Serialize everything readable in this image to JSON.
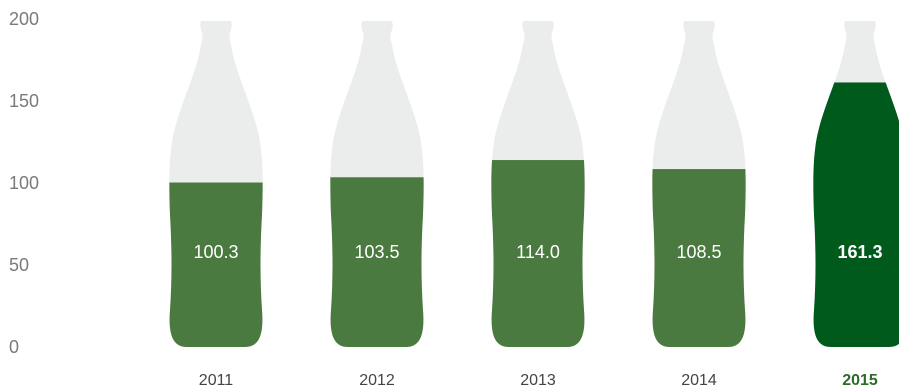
{
  "chart_data": {
    "type": "bar",
    "categories": [
      "2011",
      "2012",
      "2013",
      "2014",
      "2015"
    ],
    "values": [
      100.3,
      103.5,
      114.0,
      108.5,
      161.3
    ],
    "value_labels": [
      "100.3",
      "103.5",
      "114.0",
      "108.5",
      "161.3"
    ],
    "highlight_index": 4,
    "yticks": [
      "0",
      "50",
      "100",
      "150",
      "200"
    ],
    "ylim": [
      0,
      200
    ],
    "grid": false,
    "legend": "none",
    "title": "",
    "xlabel": "",
    "ylabel": "",
    "colors": {
      "bar": "#4a7a3f",
      "highlight": "#005a1c",
      "bottle_empty": "#ebecec",
      "label": "#ffffff",
      "highlight_tick": "#2e6b2a",
      "axis_text": "#7a7a7a"
    }
  }
}
